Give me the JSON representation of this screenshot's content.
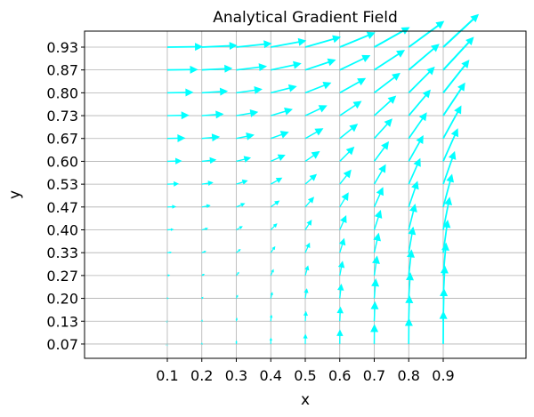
{
  "chart_data": {
    "type": "quiver",
    "title": "Analytical Gradient Field",
    "xlabel": "x",
    "ylabel": "y",
    "xlim": [
      -0.14,
      1.14
    ],
    "ylim": [
      0.025,
      0.98
    ],
    "xticks": [
      0.1,
      0.2,
      0.3,
      0.4,
      0.5,
      0.6,
      0.7,
      0.8,
      0.9
    ],
    "xtick_labels": [
      "0.1",
      "0.2",
      "0.3",
      "0.4",
      "0.5",
      "0.6",
      "0.7",
      "0.8",
      "0.9"
    ],
    "yticks": [
      0.0667,
      0.1333,
      0.2,
      0.2667,
      0.3333,
      0.4,
      0.4667,
      0.5333,
      0.6,
      0.6667,
      0.7333,
      0.8,
      0.8667,
      0.9333
    ],
    "ytick_labels": [
      "0.07",
      "0.13",
      "0.20",
      "0.27",
      "0.33",
      "0.40",
      "0.47",
      "0.53",
      "0.60",
      "0.67",
      "0.73",
      "0.80",
      "0.87",
      "0.93"
    ],
    "grid": true,
    "arrow_color": "#00ffff",
    "field": {
      "u": "y^2",
      "v": "x^2"
    }
  }
}
